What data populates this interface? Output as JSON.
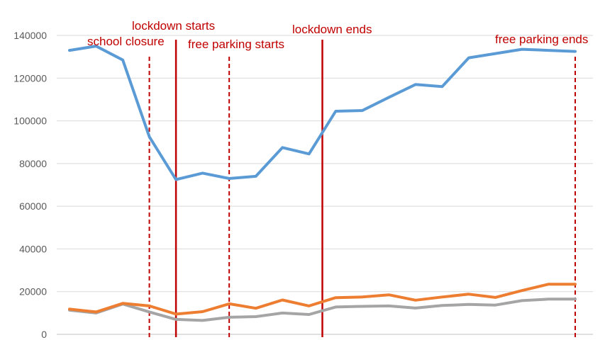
{
  "chart_data": {
    "type": "line",
    "title": "",
    "xlabel": "",
    "ylabel": "",
    "ylim": [
      0,
      140000
    ],
    "yticks": [
      0,
      20000,
      40000,
      60000,
      80000,
      100000,
      120000,
      140000
    ],
    "grid": true,
    "legend": "none",
    "x": [
      1,
      2,
      3,
      4,
      5,
      6,
      7,
      8,
      9,
      10,
      11,
      12,
      13,
      14,
      15,
      16,
      17,
      18,
      19,
      20
    ],
    "series": [
      {
        "color": "#5b9bd5",
        "values": [
          133000,
          135000,
          128500,
          92500,
          72500,
          75500,
          73000,
          74000,
          87500,
          84500,
          104500,
          104800,
          111000,
          117000,
          116000,
          129500,
          131500,
          133500,
          133000,
          132500
        ]
      },
      {
        "color": "#ed7d31",
        "values": [
          11800,
          10500,
          14500,
          13300,
          9500,
          10600,
          14300,
          12200,
          16100,
          13300,
          17200,
          17500,
          18500,
          16000,
          17500,
          18800,
          17300,
          20500,
          23500,
          23500
        ]
      },
      {
        "color": "#a5a5a5",
        "values": [
          11300,
          10000,
          14200,
          10500,
          7000,
          6500,
          8000,
          8300,
          10000,
          9300,
          12800,
          13100,
          13300,
          12300,
          13500,
          14000,
          13700,
          15800,
          16500,
          16500
        ]
      }
    ],
    "annotations": [
      {
        "label": "school closure",
        "x": 4.0,
        "style": "dashed"
      },
      {
        "label": "lockdown starts",
        "x": 5.0,
        "style": "solid"
      },
      {
        "label": "free parking starts",
        "x": 7.0,
        "style": "dashed"
      },
      {
        "label": "lockdown ends",
        "x": 10.5,
        "style": "solid"
      },
      {
        "label": "free parking ends",
        "x": 20.0,
        "style": "dashed"
      }
    ],
    "annotation_color": "#c00000"
  }
}
